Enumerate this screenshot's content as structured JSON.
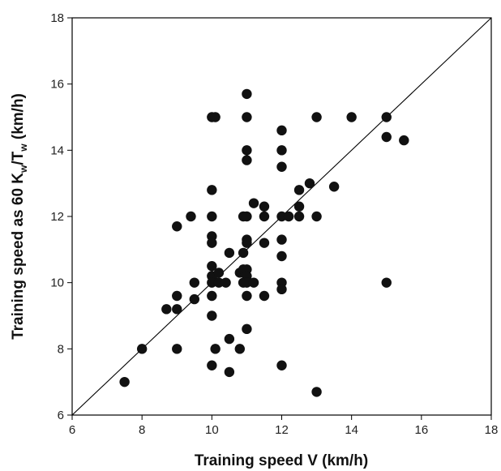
{
  "chart_data": {
    "type": "scatter",
    "title": "",
    "xlabel": "Training speed V (km/h)",
    "ylabel": {
      "prefix": "Training speed as 60 K",
      "sub1": "w",
      "mid": "/T",
      "sub2": "w",
      "suffix": " (km/h)"
    },
    "xlim": [
      6,
      18
    ],
    "ylim": [
      6,
      18
    ],
    "xticks": [
      "6",
      "8",
      "10",
      "12",
      "14",
      "16",
      "18"
    ],
    "yticks": [
      "6",
      "8",
      "10",
      "12",
      "14",
      "16",
      "18"
    ],
    "identity_line": true,
    "grid": false,
    "marker_color": "#111111",
    "points": [
      [
        7.5,
        7.0
      ],
      [
        8.0,
        8.0
      ],
      [
        8.7,
        9.2
      ],
      [
        9.0,
        11.7
      ],
      [
        9.0,
        9.6
      ],
      [
        9.0,
        9.2
      ],
      [
        9.0,
        8.0
      ],
      [
        9.4,
        12.0
      ],
      [
        9.5,
        10.0
      ],
      [
        9.5,
        9.5
      ],
      [
        10.0,
        15.0
      ],
      [
        10.1,
        15.0
      ],
      [
        10.0,
        12.8
      ],
      [
        10.0,
        12.0
      ],
      [
        10.0,
        11.4
      ],
      [
        10.0,
        11.2
      ],
      [
        10.0,
        10.5
      ],
      [
        10.0,
        10.2
      ],
      [
        10.0,
        10.0
      ],
      [
        10.2,
        10.0
      ],
      [
        10.0,
        9.6
      ],
      [
        10.0,
        9.0
      ],
      [
        10.0,
        7.5
      ],
      [
        10.1,
        8.0
      ],
      [
        10.2,
        10.3
      ],
      [
        10.4,
        10.0
      ],
      [
        10.5,
        10.9
      ],
      [
        10.5,
        8.3
      ],
      [
        10.5,
        7.3
      ],
      [
        10.8,
        10.3
      ],
      [
        10.8,
        8.0
      ],
      [
        10.9,
        12.0
      ],
      [
        10.9,
        10.9
      ],
      [
        10.9,
        10.4
      ],
      [
        10.9,
        10.0
      ],
      [
        11.0,
        15.7
      ],
      [
        11.0,
        15.0
      ],
      [
        11.0,
        14.0
      ],
      [
        11.0,
        13.7
      ],
      [
        11.0,
        12.0
      ],
      [
        11.0,
        11.3
      ],
      [
        11.0,
        11.2
      ],
      [
        11.0,
        10.4
      ],
      [
        11.0,
        10.2
      ],
      [
        11.0,
        10.0
      ],
      [
        11.0,
        9.6
      ],
      [
        11.0,
        8.6
      ],
      [
        11.2,
        12.4
      ],
      [
        11.2,
        10.0
      ],
      [
        11.5,
        12.3
      ],
      [
        11.5,
        12.0
      ],
      [
        11.5,
        11.2
      ],
      [
        11.5,
        9.6
      ],
      [
        12.0,
        14.6
      ],
      [
        12.0,
        14.0
      ],
      [
        12.0,
        13.5
      ],
      [
        12.0,
        12.0
      ],
      [
        12.2,
        12.0
      ],
      [
        12.0,
        11.3
      ],
      [
        12.0,
        10.8
      ],
      [
        12.0,
        10.0
      ],
      [
        12.0,
        9.8
      ],
      [
        12.0,
        7.5
      ],
      [
        12.5,
        12.8
      ],
      [
        12.5,
        12.3
      ],
      [
        12.5,
        12.0
      ],
      [
        12.8,
        13.0
      ],
      [
        13.0,
        15.0
      ],
      [
        13.0,
        12.0
      ],
      [
        13.0,
        6.7
      ],
      [
        13.5,
        12.9
      ],
      [
        14.0,
        15.0
      ],
      [
        15.0,
        15.0
      ],
      [
        15.0,
        14.4
      ],
      [
        15.0,
        10.0
      ],
      [
        15.5,
        14.3
      ]
    ]
  }
}
